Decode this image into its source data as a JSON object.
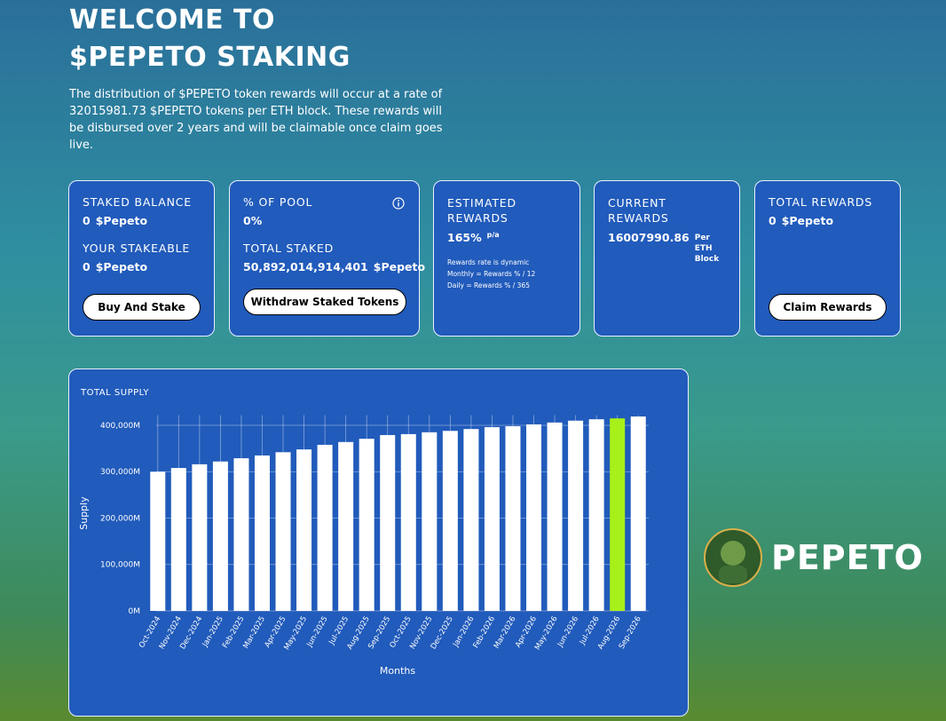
{
  "header": {
    "title": "Welcome to $PEPETO Staking",
    "description": "The distribution of $PEPETO token rewards will occur at a rate of 32015981.73 $PEPETO tokens per ETH block. These rewards will be disbursed over 2 years and will be claimable once claim goes live."
  },
  "cards": [
    {
      "rows": [
        {
          "label": "STAKED BALANCE",
          "value": "0",
          "unit": "$Pepeto"
        },
        {
          "label": "YOUR STAKEABLE",
          "value": "0",
          "unit": "$Pepeto"
        }
      ],
      "button": "Buy And Stake"
    },
    {
      "rows": [
        {
          "label": "% OF POOL",
          "value": "0%"
        },
        {
          "label": "TOTAL STAKED",
          "value": "50,892,014,914,401",
          "unit": "$Pepeto"
        }
      ],
      "button": "Withdraw Staked Tokens"
    },
    {
      "rows": [
        {
          "label": "ESTIMATED REWARDS",
          "value": "165%",
          "unit": "p/a"
        }
      ],
      "notes": [
        "Rewards rate is dynamic",
        "Monthly = Rewards % / 12",
        "Daily = Rewards % / 365"
      ]
    },
    {
      "rows": [
        {
          "label": "CURRENT REWARDS",
          "value": "16007990.86",
          "unit": "Per ETH Block"
        }
      ]
    },
    {
      "rows": [
        {
          "label": "TOTAL REWARDS",
          "value": "0",
          "unit": "$Pepeto"
        }
      ],
      "button": "Claim Rewards"
    }
  ],
  "chart_data": {
    "type": "bar",
    "title": "TOTAL SUPPLY",
    "ylabel": "Supply",
    "xlabel": "Months",
    "categories": [
      "Oct-2024",
      "Nov-2024",
      "Dec-2024",
      "Jan-2025",
      "Feb-2025",
      "Mar-2025",
      "Apr-2025",
      "May-2025",
      "Jun-2025",
      "Jul-2025",
      "Aug-2025",
      "Sep-2025",
      "Oct-2025",
      "Nov-2025",
      "Dec-2025",
      "Jan-2026",
      "Feb-2026",
      "Mar-2026",
      "Apr-2026",
      "May-2026",
      "Jun-2026",
      "Jul-2026",
      "Aug-2026",
      "Sep-2026"
    ],
    "values": [
      300000,
      308000,
      316000,
      322000,
      329000,
      335000,
      342000,
      348000,
      358000,
      364000,
      371000,
      379000,
      381000,
      385000,
      388000,
      392000,
      396000,
      398000,
      402000,
      406000,
      410000,
      413000,
      415000,
      419000
    ],
    "colors": [
      "#ffffff",
      "#ffffff",
      "#ffffff",
      "#ffffff",
      "#ffffff",
      "#ffffff",
      "#ffffff",
      "#ffffff",
      "#ffffff",
      "#ffffff",
      "#ffffff",
      "#ffffff",
      "#ffffff",
      "#ffffff",
      "#ffffff",
      "#ffffff",
      "#ffffff",
      "#ffffff",
      "#ffffff",
      "#ffffff",
      "#ffffff",
      "#ffffff",
      "#a8f01a",
      "#ffffff"
    ],
    "ylim": [
      0,
      422000
    ],
    "yticks": [
      {
        "value": 0,
        "label": "0M"
      },
      {
        "value": 100000,
        "label": "100,000M"
      },
      {
        "value": 200000,
        "label": "200,000M"
      },
      {
        "value": 300000,
        "label": "300,000M"
      },
      {
        "value": 400000,
        "label": "400,000M"
      }
    ],
    "grid": true
  },
  "logo": {
    "text": "PEPETO"
  }
}
